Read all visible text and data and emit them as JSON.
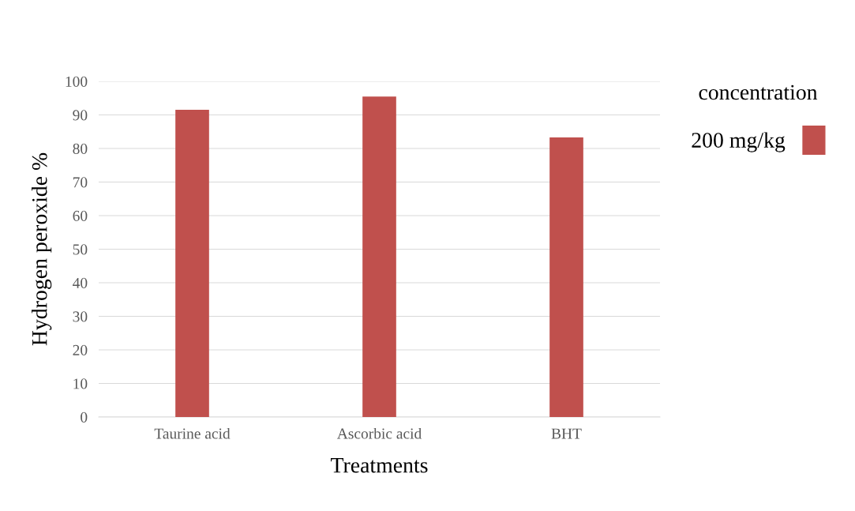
{
  "chart_data": {
    "type": "bar",
    "xlabel": "Treatments",
    "ylabel": "Hydrogen peroxide %",
    "legend_title": "concentration",
    "categories": [
      "Taurine acid",
      "Ascorbic acid",
      "BHT"
    ],
    "series": [
      {
        "name": "200 mg/kg",
        "color": "#c0504d",
        "values": [
          91.5,
          95.5,
          83.3
        ]
      }
    ],
    "ylim": [
      0,
      100
    ],
    "yticks": [
      0,
      10,
      20,
      30,
      40,
      50,
      60,
      70,
      80,
      90,
      100
    ],
    "grid": "y",
    "legend": "right"
  }
}
